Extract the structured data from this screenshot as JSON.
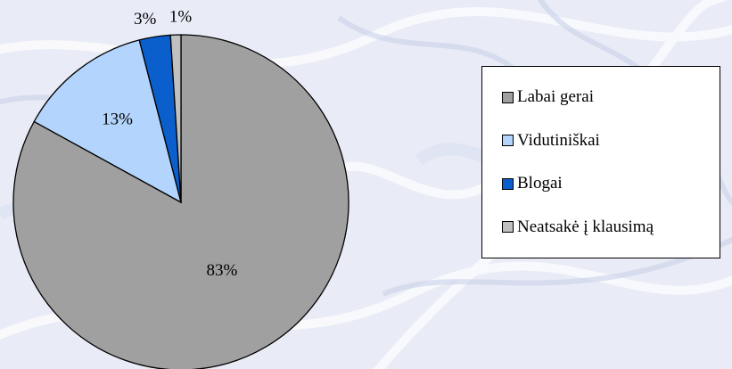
{
  "colors": {
    "background": "#e9ecf6",
    "slice_outline": "#000000"
  },
  "chart_data": {
    "type": "pie",
    "title": "",
    "legend_position": "right",
    "slices": [
      {
        "name": "Labai gerai",
        "value": 83,
        "label": "83%",
        "color": "#a0a0a0"
      },
      {
        "name": "Vidutiniškai",
        "value": 13,
        "label": "13%",
        "color": "#b3d4fc"
      },
      {
        "name": "Blogai",
        "value": 3,
        "label": "3%",
        "color": "#0b5fcc"
      },
      {
        "name": "Neatsakė į klausimą",
        "value": 1,
        "label": "1%",
        "color": "#c0c0c0"
      }
    ]
  }
}
